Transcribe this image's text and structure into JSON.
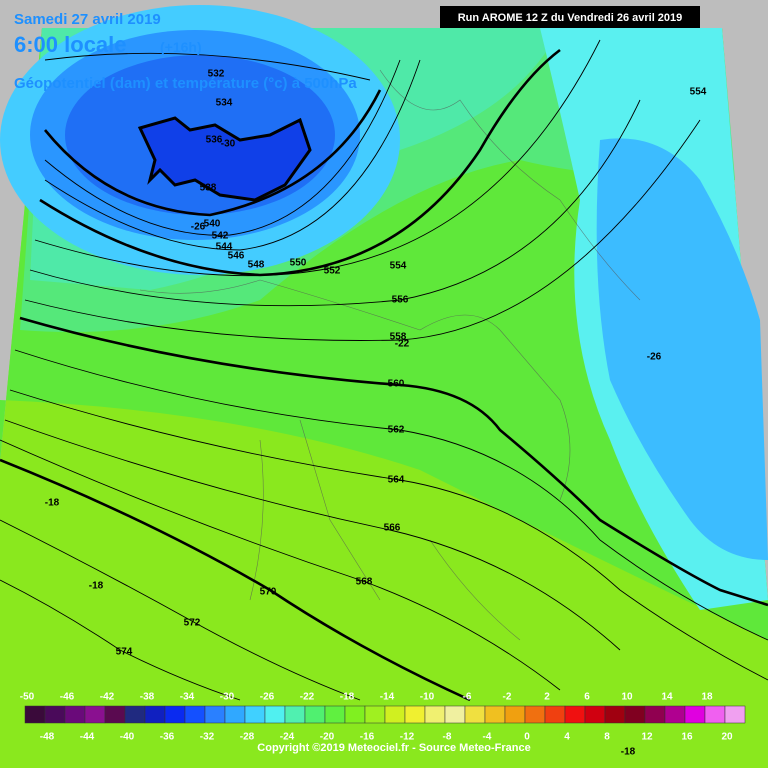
{
  "header": {
    "date": "Samedi 27 avril 2019",
    "time": "6:00 locale",
    "lead": "(+16h)",
    "field": "Géopotentiel (dam) et température (°c) à 500hPa",
    "run": "Run AROME 12 Z du Vendredi 26 avril 2019"
  },
  "map": {
    "labels": [
      532,
      534,
      536,
      -30,
      538,
      540,
      -26,
      542,
      544,
      546,
      548,
      550,
      552,
      554,
      554,
      556,
      558,
      -22,
      560,
      562,
      564,
      566,
      568,
      570,
      572,
      574,
      -18,
      -18,
      -26,
      -18
    ]
  },
  "scale": {
    "top": [
      -50,
      -46,
      -42,
      -38,
      -34,
      -30,
      -26,
      -22,
      -18,
      -14,
      -10,
      -6,
      -2,
      2,
      6,
      10,
      14,
      18
    ],
    "bottom": [
      -48,
      -44,
      -40,
      -36,
      -32,
      -28,
      -24,
      -20,
      -16,
      -12,
      -8,
      -4,
      0,
      4,
      8,
      12,
      16,
      20
    ]
  },
  "footer": "Copyright ©2019 Meteociel.fr - Source Meteo-France"
}
